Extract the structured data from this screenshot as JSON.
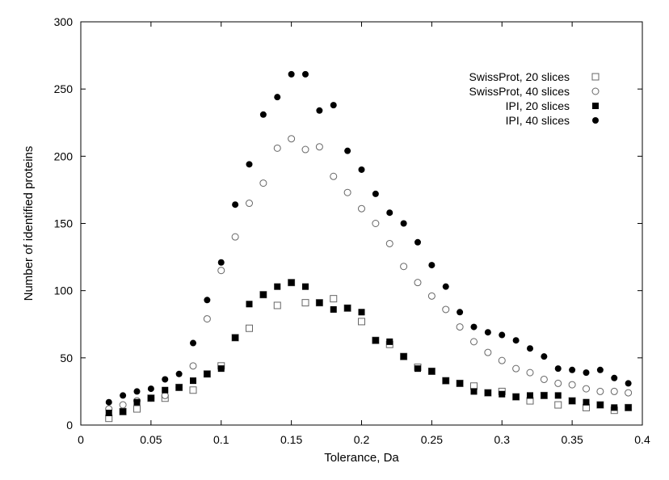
{
  "chart_data": {
    "type": "scatter",
    "xlabel": "Tolerance, Da",
    "ylabel": "Number of identified proteins",
    "xlim": [
      0,
      0.4
    ],
    "ylim": [
      0,
      300
    ],
    "xticks": [
      0,
      0.05,
      0.1,
      0.15,
      0.2,
      0.25,
      0.3,
      0.35,
      0.4
    ],
    "xtick_labels": [
      "0",
      "0.05",
      "0.1",
      "0.15",
      "0.2",
      "0.25",
      "0.3",
      "0.35",
      "0.4"
    ],
    "yticks": [
      0,
      50,
      100,
      150,
      200,
      250,
      300
    ],
    "ytick_labels": [
      "0",
      "50",
      "100",
      "150",
      "200",
      "250",
      "300"
    ],
    "grid": false,
    "legend_position": "top-right",
    "series": [
      {
        "name": "SwissProt, 20 slices",
        "marker": "open-square",
        "x": [
          0.02,
          0.03,
          0.04,
          0.05,
          0.06,
          0.07,
          0.08,
          0.09,
          0.1,
          0.11,
          0.12,
          0.13,
          0.14,
          0.15,
          0.16,
          0.17,
          0.18,
          0.19,
          0.2,
          0.21,
          0.22,
          0.23,
          0.24,
          0.25,
          0.26,
          0.27,
          0.28,
          0.29,
          0.3,
          0.31,
          0.32,
          0.33,
          0.34,
          0.35,
          0.36,
          0.37,
          0.38,
          0.39
        ],
        "y": [
          5,
          10,
          12,
          20,
          20,
          28,
          26,
          38,
          44,
          65,
          72,
          97,
          89,
          106,
          91,
          91,
          94,
          87,
          77,
          63,
          60,
          51,
          43,
          40,
          33,
          31,
          29,
          24,
          25,
          21,
          18,
          22,
          15,
          18,
          13,
          15,
          11,
          13
        ]
      },
      {
        "name": "SwissProt, 40 slices",
        "marker": "open-circle",
        "x": [
          0.02,
          0.03,
          0.04,
          0.05,
          0.06,
          0.07,
          0.08,
          0.09,
          0.1,
          0.11,
          0.12,
          0.13,
          0.14,
          0.15,
          0.16,
          0.17,
          0.18,
          0.19,
          0.2,
          0.21,
          0.22,
          0.23,
          0.24,
          0.25,
          0.26,
          0.27,
          0.28,
          0.29,
          0.3,
          0.31,
          0.32,
          0.33,
          0.34,
          0.35,
          0.36,
          0.37,
          0.38,
          0.39
        ],
        "y": [
          12,
          15,
          18,
          20,
          22,
          28,
          44,
          79,
          115,
          140,
          165,
          180,
          206,
          213,
          205,
          207,
          185,
          173,
          161,
          150,
          135,
          118,
          106,
          96,
          86,
          73,
          62,
          54,
          48,
          42,
          39,
          34,
          31,
          30,
          27,
          25,
          25,
          24
        ]
      },
      {
        "name": "IPI, 20 slices",
        "marker": "filled-square",
        "x": [
          0.02,
          0.03,
          0.04,
          0.05,
          0.06,
          0.07,
          0.08,
          0.09,
          0.1,
          0.11,
          0.12,
          0.13,
          0.14,
          0.15,
          0.16,
          0.17,
          0.18,
          0.19,
          0.2,
          0.21,
          0.22,
          0.23,
          0.24,
          0.25,
          0.26,
          0.27,
          0.28,
          0.29,
          0.3,
          0.31,
          0.32,
          0.33,
          0.34,
          0.35,
          0.36,
          0.37,
          0.38,
          0.39
        ],
        "y": [
          9,
          10,
          17,
          20,
          26,
          28,
          33,
          38,
          42,
          65,
          90,
          97,
          103,
          106,
          103,
          91,
          86,
          87,
          84,
          63,
          62,
          51,
          42,
          40,
          33,
          31,
          25,
          24,
          23,
          21,
          22,
          22,
          22,
          18,
          17,
          15,
          13,
          13
        ]
      },
      {
        "name": "IPI, 40 slices",
        "marker": "filled-circle",
        "x": [
          0.02,
          0.03,
          0.04,
          0.05,
          0.06,
          0.07,
          0.08,
          0.09,
          0.1,
          0.11,
          0.12,
          0.13,
          0.14,
          0.15,
          0.16,
          0.17,
          0.18,
          0.19,
          0.2,
          0.21,
          0.22,
          0.23,
          0.24,
          0.25,
          0.26,
          0.27,
          0.28,
          0.29,
          0.3,
          0.31,
          0.32,
          0.33,
          0.34,
          0.35,
          0.36,
          0.37,
          0.38,
          0.39
        ],
        "y": [
          17,
          22,
          25,
          27,
          34,
          38,
          61,
          93,
          121,
          164,
          194,
          231,
          244,
          261,
          261,
          234,
          238,
          204,
          190,
          172,
          158,
          150,
          136,
          119,
          103,
          84,
          73,
          69,
          67,
          63,
          57,
          51,
          42,
          41,
          39,
          41,
          35,
          31
        ]
      }
    ]
  },
  "colors": {
    "marker": "#000000",
    "open_fill": "#ffffff",
    "open_stroke": "#666666"
  }
}
